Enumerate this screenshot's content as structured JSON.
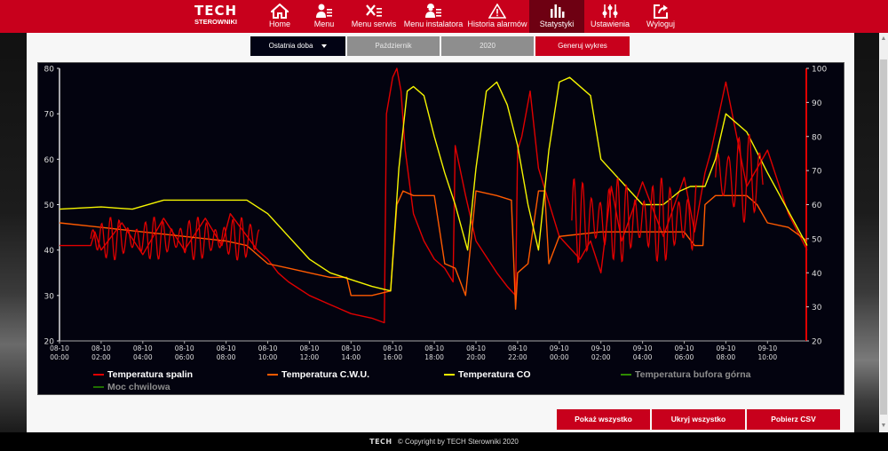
{
  "header": {
    "logo_main": "TECH",
    "logo_sub": "STEROWNIKI",
    "nav": [
      {
        "label": "Home",
        "icon": "home-icon"
      },
      {
        "label": "Menu",
        "icon": "user-menu-icon"
      },
      {
        "label": "Menu serwis",
        "icon": "tools-icon"
      },
      {
        "label": "Menu instalatora",
        "icon": "installer-icon"
      },
      {
        "label": "Historia alarmów",
        "icon": "warning-icon"
      },
      {
        "label": "Statystyki",
        "icon": "bar-chart-icon",
        "active": true
      },
      {
        "label": "Ustawienia",
        "icon": "sliders-icon"
      },
      {
        "label": "Wyloguj",
        "icon": "logout-icon"
      }
    ],
    "brand_color": "#c8001c",
    "active_color": "#6e0012"
  },
  "filters": {
    "range": "Ostatnia doba",
    "month": "Październik",
    "year": "2020",
    "generate": "Generuj wykres"
  },
  "actions": {
    "show_all": "Pokaż wszystko",
    "hide_all": "Ukryj wszystko",
    "download_csv": "Pobierz CSV"
  },
  "footer": {
    "logo": "TECH",
    "text": "© Copyright by TECH Sterowniki 2020"
  },
  "chart_data": {
    "type": "line",
    "title": "",
    "xlabel": "",
    "ylabel": "",
    "ylim": [
      20,
      80
    ],
    "y2lim": [
      20,
      100
    ],
    "grid": false,
    "legend_position": "bottom",
    "y_ticks": [
      20,
      30,
      40,
      50,
      60,
      70,
      80
    ],
    "y2_ticks": [
      20,
      30,
      40,
      50,
      60,
      70,
      80,
      90,
      100
    ],
    "x_ticks": [
      [
        "08-10",
        "00:00"
      ],
      [
        "08-10",
        "02:00"
      ],
      [
        "08-10",
        "04:00"
      ],
      [
        "08-10",
        "06:00"
      ],
      [
        "08-10",
        "08:00"
      ],
      [
        "08-10",
        "10:00"
      ],
      [
        "08-10",
        "12:00"
      ],
      [
        "08-10",
        "14:00"
      ],
      [
        "08-10",
        "16:00"
      ],
      [
        "08-10",
        "18:00"
      ],
      [
        "08-10",
        "20:00"
      ],
      [
        "08-10",
        "22:00"
      ],
      [
        "09-10",
        "00:00"
      ],
      [
        "09-10",
        "02:00"
      ],
      [
        "09-10",
        "04:00"
      ],
      [
        "09-10",
        "06:00"
      ],
      [
        "09-10",
        "08:00"
      ],
      [
        "09-10",
        "10:00"
      ]
    ],
    "x_unit": "hours since 08-10 00:00",
    "series": [
      {
        "name": "Temperatura spalin",
        "color": "#e00000",
        "axis": "left",
        "visible": true,
        "x": [
          0,
          1.5,
          1.7,
          2,
          3,
          4,
          5,
          6,
          7,
          7.8,
          8.2,
          9.5,
          10,
          10.5,
          11,
          12,
          13,
          14,
          15,
          15.6,
          15.7,
          16,
          16.2,
          16.4,
          16.6,
          17,
          17.5,
          18,
          18.5,
          18.9,
          19,
          19.5,
          20,
          21,
          21.5,
          21.9,
          22,
          22.2,
          22.6,
          23,
          24,
          25,
          25.5,
          26,
          26.5,
          27,
          28,
          29,
          30,
          30.5,
          31,
          31.3,
          32,
          33,
          34,
          35,
          35.9
        ],
        "y": [
          41,
          41,
          44,
          40,
          46,
          39,
          47,
          40,
          47,
          41,
          48,
          40,
          38,
          35,
          33,
          30,
          28,
          26,
          25,
          24,
          70,
          78,
          80,
          75,
          62,
          48,
          42,
          38,
          36,
          33,
          63,
          52,
          42,
          35,
          32,
          30,
          62,
          65,
          75,
          58,
          43,
          38,
          42,
          35,
          54,
          42,
          55,
          43,
          56,
          44,
          57,
          62,
          77,
          54,
          62,
          48,
          40
        ],
        "note": "left axis; high-frequency oscillation 41±6 during 01:00-08:00 and 37-56 during 00:00-05:00 next day"
      },
      {
        "name": "Temperatura C.W.U.",
        "color": "#ff5a00",
        "axis": "left",
        "visible": true,
        "x": [
          0,
          2,
          4,
          6,
          8,
          9,
          10,
          11,
          12,
          13,
          13.8,
          14,
          15,
          15.9,
          16.2,
          16.5,
          17,
          18,
          18.5,
          19,
          19.5,
          20,
          21,
          21.7,
          21.9,
          22,
          22.5,
          23,
          23.3,
          23.5,
          24,
          26,
          28,
          30,
          30.5,
          30.9,
          31,
          31.5,
          33,
          33.5,
          34,
          35,
          35.9
        ],
        "y": [
          46,
          45,
          44,
          43,
          42,
          41,
          37,
          36,
          35,
          34,
          34,
          30,
          30,
          31,
          50,
          53,
          52,
          52,
          37,
          36,
          30,
          53,
          52,
          51,
          27,
          35,
          37,
          53,
          53,
          37,
          43,
          44,
          44,
          44,
          41,
          41,
          50,
          52,
          52,
          50,
          46,
          45,
          42
        ],
        "note": "left axis"
      },
      {
        "name": "Temperatura CO",
        "color": "#f5f500",
        "axis": "left",
        "visible": true,
        "x": [
          0,
          2,
          3.5,
          5,
          7,
          9,
          10,
          11,
          12,
          13,
          14,
          15,
          15.9,
          16.3,
          16.7,
          17,
          17.5,
          18,
          18.5,
          19,
          19.6,
          20,
          20.5,
          21,
          21.5,
          22,
          22.5,
          23,
          23.5,
          24,
          24.5,
          25.5,
          26,
          28,
          29,
          29.8,
          30.3,
          31,
          31.5,
          32,
          33,
          34,
          35.9
        ],
        "y": [
          49,
          49.5,
          49,
          51,
          51,
          51,
          48,
          43,
          38,
          35,
          33.5,
          32,
          31,
          58,
          75,
          76,
          74,
          65,
          57,
          50,
          40,
          58,
          75,
          77,
          72,
          63,
          50,
          40,
          62,
          77,
          78,
          74,
          60,
          50,
          50,
          53,
          54,
          54,
          60,
          70,
          66,
          57,
          41
        ],
        "note": "left axis"
      },
      {
        "name": "Temperatura bufora górna",
        "color": "#2e8b00",
        "axis": "left",
        "visible": false,
        "x": [],
        "y": []
      },
      {
        "name": "Moc chwilowa",
        "color": "#1f6f00",
        "axis": "right",
        "visible": false,
        "x": [],
        "y": []
      }
    ]
  }
}
